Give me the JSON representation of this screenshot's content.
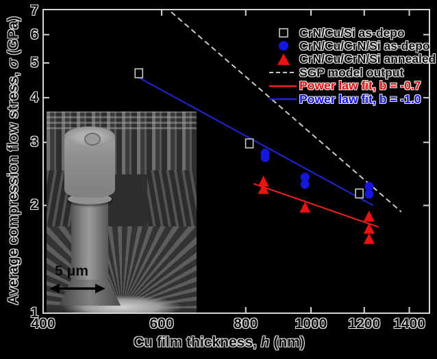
{
  "inset": {
    "scale_label": "5 μm"
  },
  "axes": {
    "x_title_prefix": "Cu film thickness, ",
    "x_title_var": "h",
    "x_title_suffix": " (nm)",
    "y_title_prefix": "Average compression flow stress, ",
    "y_title_var": "σ",
    "y_title_suffix": " (GPa)"
  },
  "legend": {
    "items": [
      {
        "label": "CrN/Cu/Si as-depo",
        "glyph": "square-open",
        "glyph_color": "#050505",
        "edge_color": "#c9c9c9",
        "text_color": "#0e0e0e"
      },
      {
        "label": "CrN/Cu/CrN/Si as-depo",
        "glyph": "circle",
        "glyph_color": "#1616dd",
        "text_color": "#0e0e0e"
      },
      {
        "label": "CrN/Cu/CrN/Si annealed",
        "glyph": "triangle",
        "glyph_color": "#ee1111",
        "text_color": "#0e0e0e"
      },
      {
        "label": "SGP model output",
        "glyph": "dashed-line",
        "glyph_color": "#cccccc",
        "text_color": "#0e0e0e"
      },
      {
        "label": "Power law fit, b = -0.7",
        "glyph": "solid-line",
        "glyph_color": "#f22222",
        "text_color": "#e01010"
      },
      {
        "label": "Power law fit, b = -1.0",
        "glyph": "solid-line",
        "glyph_color": "#2424d6",
        "text_color": "#1515dd"
      }
    ]
  },
  "chart_data": {
    "type": "scatter",
    "x_scale": "log",
    "y_scale": "log",
    "xlabel": "Cu film thickness, h (nm)",
    "ylabel": "Average compression flow stress, σ (GPa)",
    "xlim": [
      400,
      1500
    ],
    "ylim": [
      1,
      7.05
    ],
    "x_ticks": [
      400,
      600,
      800,
      1000,
      1200,
      1400
    ],
    "y_ticks": [
      1,
      2,
      3,
      4,
      5,
      6,
      7
    ],
    "grid": false,
    "legend_position": "upper right",
    "series": [
      {
        "name": "CrN/Cu/Si as-depo",
        "marker": "square-open",
        "color": "#050505",
        "edge": "#c9c9c9",
        "points": [
          [
            555,
            4.68
          ],
          [
            810,
            2.98
          ],
          [
            1180,
            2.16
          ]
        ]
      },
      {
        "name": "CrN/Cu/CrN/Si as-depo",
        "marker": "circle",
        "color": "#1616dd",
        "points": [
          [
            855,
            2.8
          ],
          [
            855,
            2.72
          ],
          [
            980,
            2.4
          ],
          [
            980,
            2.29
          ],
          [
            1220,
            2.26
          ],
          [
            1220,
            2.15
          ]
        ]
      },
      {
        "name": "CrN/Cu/CrN/Si annealed",
        "marker": "triangle",
        "color": "#ee1111",
        "points": [
          [
            850,
            2.33
          ],
          [
            850,
            2.22
          ],
          [
            980,
            1.97
          ],
          [
            1220,
            1.86
          ],
          [
            1220,
            1.72
          ],
          [
            1220,
            1.61
          ]
        ]
      }
    ],
    "lines": [
      {
        "name": "SGP model output",
        "style": "dashed",
        "color": "#cccccc",
        "from": [
          620,
          6.94
        ],
        "to": [
          1362,
          1.92
        ]
      },
      {
        "name": "Power law fit, b = -1.0",
        "style": "solid",
        "color": "#2424d6",
        "b": -1.0,
        "from": [
          555,
          4.55
        ],
        "to": [
          1237,
          2.0
        ]
      },
      {
        "name": "Power law fit, b = -0.7",
        "style": "solid",
        "color": "#f22222",
        "b": -0.7,
        "from": [
          822,
          2.3
        ],
        "to": [
          1261,
          1.74
        ]
      }
    ]
  }
}
